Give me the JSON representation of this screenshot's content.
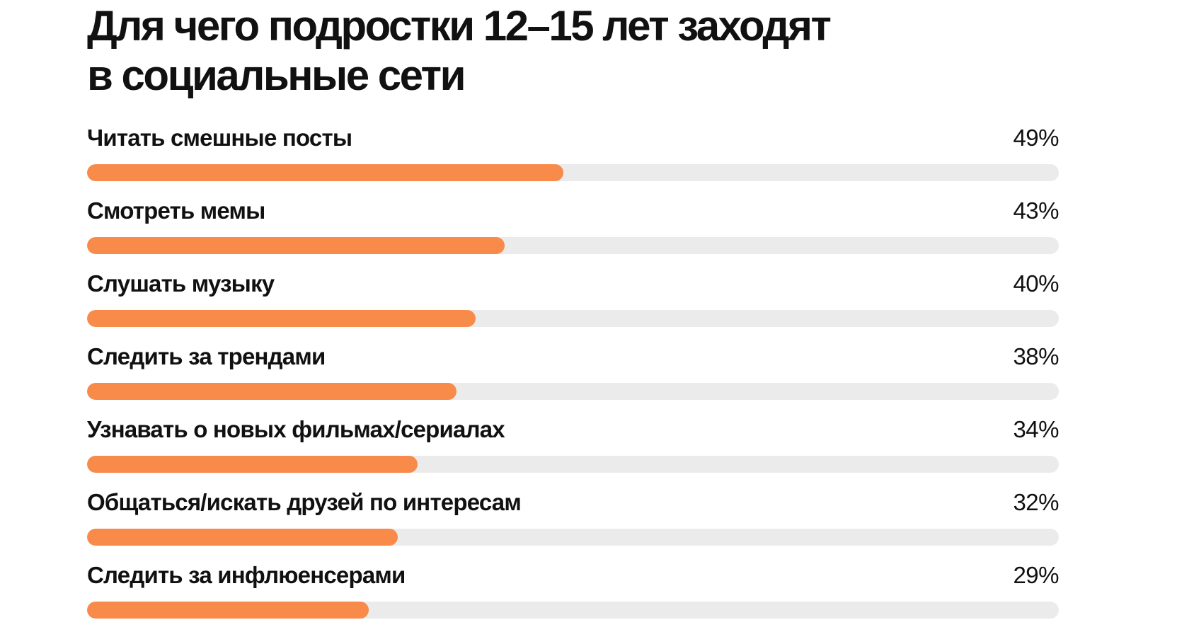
{
  "chart_data": {
    "type": "bar",
    "orientation": "horizontal",
    "title": "Для чего подростки 12–15 лет заходят в социальные сети",
    "title_lines": [
      "Для чего подростки 12–15 лет заходят",
      "в социальные сети"
    ],
    "xlim": [
      0,
      100
    ],
    "unit": "%",
    "grid": false,
    "legend": "none",
    "bar_color": "#f88a4a",
    "track_color": "#ebebeb",
    "categories": [
      "Читать смешные посты",
      "Смотреть мемы",
      "Слушать музыку",
      "Следить за трендами",
      "Узнавать о новых фильмах/сериалах",
      "Общаться/искать друзей по интересам",
      "Следить за инфлюенсерами"
    ],
    "values": [
      49,
      43,
      40,
      38,
      34,
      32,
      29
    ],
    "value_labels": [
      "49%",
      "43%",
      "40%",
      "38%",
      "34%",
      "32%",
      "29%"
    ]
  }
}
